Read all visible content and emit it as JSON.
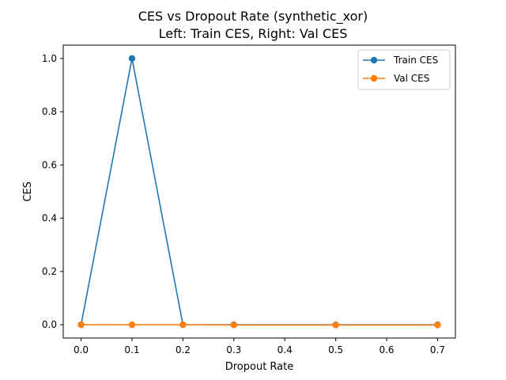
{
  "chart_data": {
    "type": "line",
    "title": "CES vs Dropout Rate (synthetic_xor)",
    "subtitle": "Left: Train CES, Right: Val CES",
    "xlabel": "Dropout Rate",
    "ylabel": "CES",
    "x": [
      0.0,
      0.1,
      0.2,
      0.3,
      0.5,
      0.7
    ],
    "xlim": [
      -0.035,
      0.735
    ],
    "ylim": [
      -0.05,
      1.05
    ],
    "xticks": [
      0.0,
      0.1,
      0.2,
      0.3,
      0.4,
      0.5,
      0.6,
      0.7
    ],
    "xtick_labels": [
      "0.0",
      "0.1",
      "0.2",
      "0.3",
      "0.4",
      "0.5",
      "0.6",
      "0.7"
    ],
    "yticks": [
      0.0,
      0.2,
      0.4,
      0.6,
      0.8,
      1.0
    ],
    "ytick_labels": [
      "0.0",
      "0.2",
      "0.4",
      "0.6",
      "0.8",
      "1.0"
    ],
    "grid": false,
    "legend_position": "top-right",
    "series": [
      {
        "name": "Train CES",
        "values": [
          0.0,
          1.0,
          0.0,
          0.0,
          0.0,
          0.0
        ],
        "color": "#1f77b4"
      },
      {
        "name": "Val CES",
        "values": [
          0.0,
          0.0,
          0.0,
          -0.001,
          -0.001,
          -0.001
        ],
        "color": "#ff7f0e"
      }
    ]
  }
}
